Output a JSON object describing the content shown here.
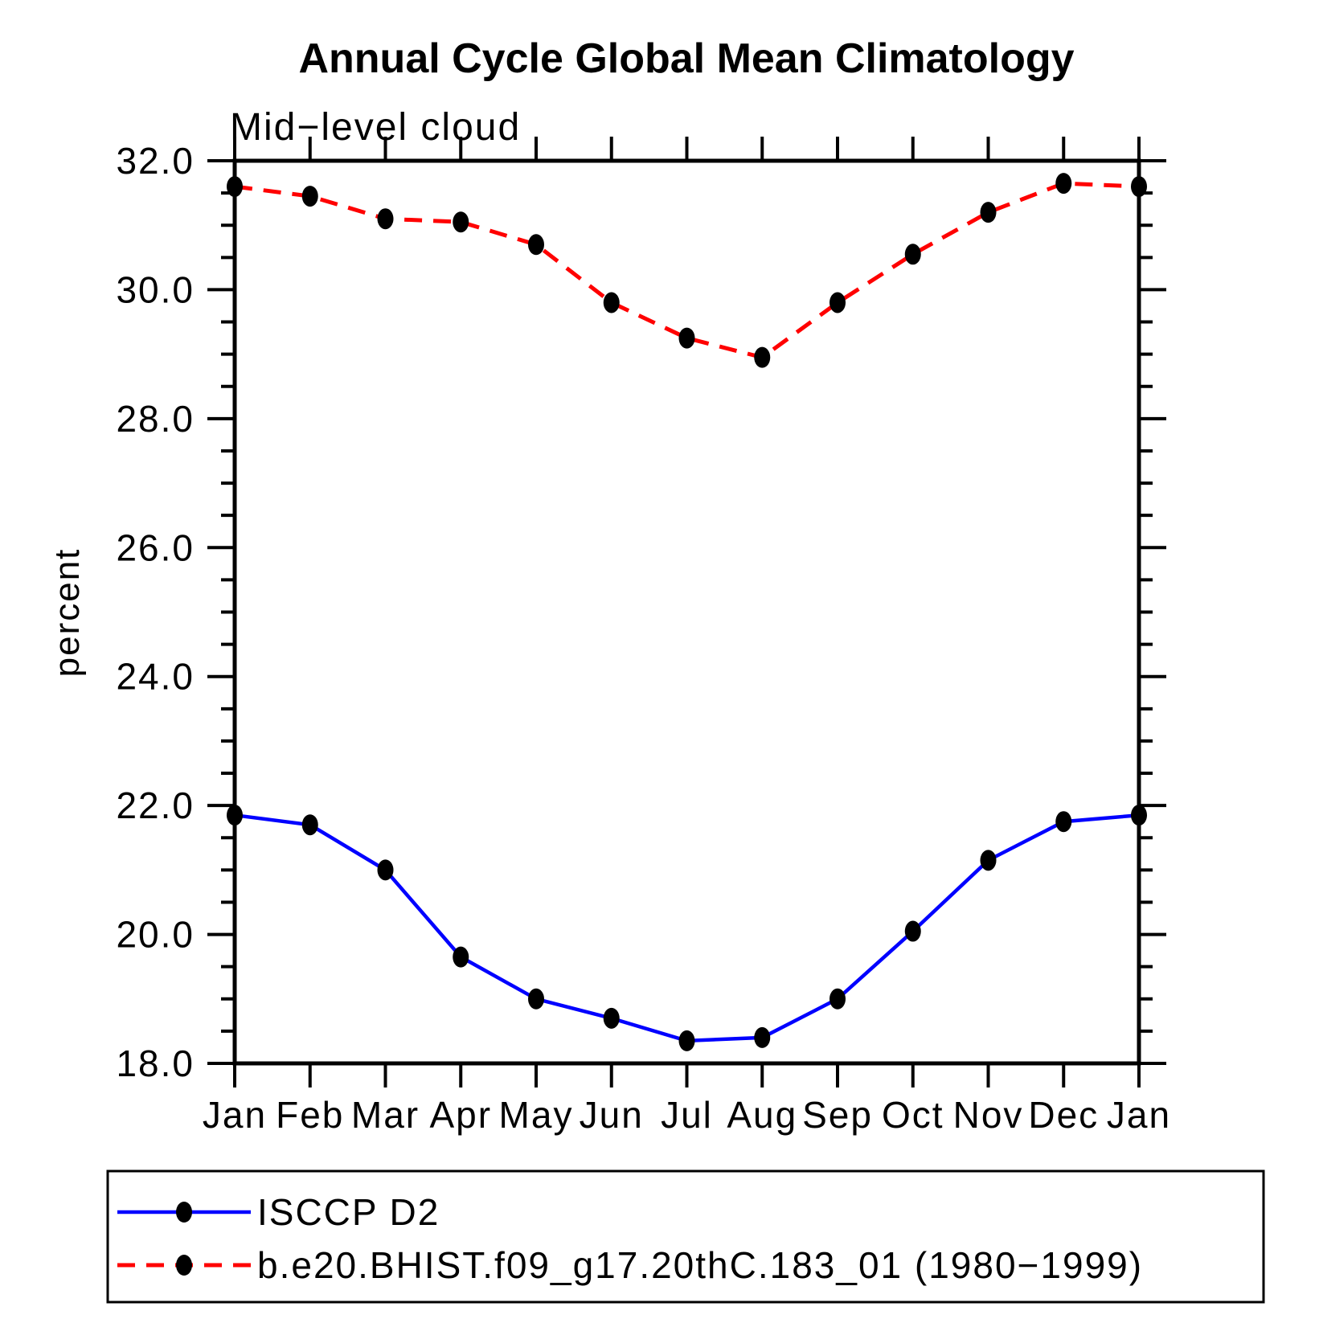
{
  "page": {
    "background": "#ffffff"
  },
  "chart_data": {
    "type": "line",
    "title": "Annual Cycle Global Mean Climatology",
    "subtitle": "Mid−level cloud",
    "ylabel": "percent",
    "xlabel": "",
    "categories": [
      "Jan",
      "Feb",
      "Mar",
      "Apr",
      "May",
      "Jun",
      "Jul",
      "Aug",
      "Sep",
      "Oct",
      "Nov",
      "Dec",
      "Jan"
    ],
    "ylim": [
      18.0,
      32.0
    ],
    "ytick_major_interval": 2.0,
    "ytick_minor_interval": 0.5,
    "ytick_labels": [
      "18.0",
      "20.0",
      "22.0",
      "24.0",
      "26.0",
      "28.0",
      "30.0",
      "32.0"
    ],
    "grid": false,
    "frame_color": "#000000",
    "marker": "filled-circle",
    "marker_color": "#000000",
    "legend_position": "bottom-left-box",
    "series": [
      {
        "name": "ISCCP D2",
        "color": "#0000ff",
        "line_style": "solid",
        "values": [
          21.85,
          21.7,
          21.0,
          19.65,
          19.0,
          18.7,
          18.35,
          18.4,
          19.0,
          20.05,
          21.15,
          21.75,
          21.85
        ]
      },
      {
        "name": "b.e20.BHIST.f09_g17.20thC.183_01 (1980−1999)",
        "color": "#ff0000",
        "line_style": "dashed",
        "values": [
          31.6,
          31.45,
          31.1,
          31.05,
          30.7,
          29.8,
          29.25,
          28.95,
          29.8,
          30.55,
          31.2,
          31.65,
          31.6
        ]
      }
    ]
  }
}
